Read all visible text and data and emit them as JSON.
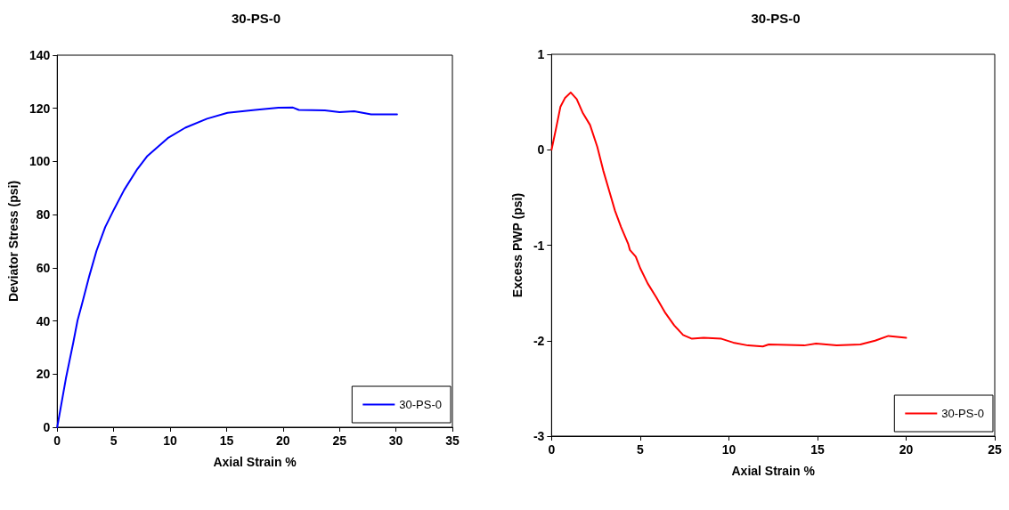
{
  "chart_data": [
    {
      "type": "line",
      "title": "30-PS-0",
      "xlabel": "Axial Strain %",
      "ylabel": "Deviator Stress (psi)",
      "xlim": [
        0,
        35
      ],
      "xticks": [
        0,
        5,
        10,
        15,
        20,
        25,
        30,
        35
      ],
      "ylim": [
        0,
        140
      ],
      "yticks": [
        0,
        20,
        40,
        60,
        80,
        100,
        120,
        140
      ],
      "legend": "bottom right",
      "marker": "none",
      "line_style": "solid",
      "series": [
        {
          "name": "30-PS-0",
          "color": "#0000ff",
          "x": [
            0,
            0.77,
            1.42,
            1.8,
            2.19,
            2.84,
            3.48,
            4.25,
            5.03,
            5.93,
            7.09,
            7.99,
            9.79,
            11.34,
            13.27,
            15.08,
            17.53,
            19.59,
            20.88,
            21.4,
            23.7,
            25.0,
            26.3,
            27.8,
            30.1
          ],
          "values": [
            0,
            18.4,
            31.8,
            40.2,
            46.3,
            56.9,
            66.4,
            75.3,
            82.0,
            89.3,
            97.1,
            102.1,
            108.8,
            112.7,
            116.1,
            118.3,
            119.4,
            120.2,
            120.3,
            119.4,
            119.2,
            118.6,
            118.9,
            117.7,
            117.7
          ]
        }
      ]
    },
    {
      "type": "line",
      "title": "30-PS-0",
      "xlabel": "Axial Strain %",
      "ylabel": "Excess PWP (psi)",
      "xlim": [
        0,
        25
      ],
      "xticks": [
        0,
        5,
        10,
        15,
        20,
        25
      ],
      "ylim": [
        -3,
        1
      ],
      "yticks": [
        -3,
        -2,
        -1,
        0,
        1
      ],
      "legend": "bottom right",
      "marker": "none",
      "line_style": "solid",
      "series": [
        {
          "name": "30-PS-0",
          "color": "#ff0000",
          "x": [
            0,
            0.25,
            0.5,
            0.75,
            1.08,
            1.42,
            1.75,
            2.17,
            2.58,
            2.92,
            3.33,
            3.58,
            3.92,
            4.33,
            4.42,
            4.75,
            5.0,
            5.42,
            5.92,
            6.42,
            6.92,
            7.42,
            7.92,
            8.58,
            9.58,
            10.25,
            11.08,
            11.92,
            12.25,
            14.25,
            14.92,
            16.08,
            17.42,
            18.25,
            19.0,
            20.0
          ],
          "values": [
            0,
            0.22,
            0.45,
            0.54,
            0.6,
            0.53,
            0.39,
            0.26,
            0.03,
            -0.22,
            -0.48,
            -0.64,
            -0.81,
            -0.99,
            -1.05,
            -1.12,
            -1.24,
            -1.4,
            -1.55,
            -1.71,
            -1.84,
            -1.94,
            -1.98,
            -1.97,
            -1.98,
            -2.02,
            -2.05,
            -2.06,
            -2.04,
            -2.05,
            -2.03,
            -2.05,
            -2.04,
            -2.0,
            -1.95,
            -1.97
          ]
        }
      ]
    }
  ]
}
